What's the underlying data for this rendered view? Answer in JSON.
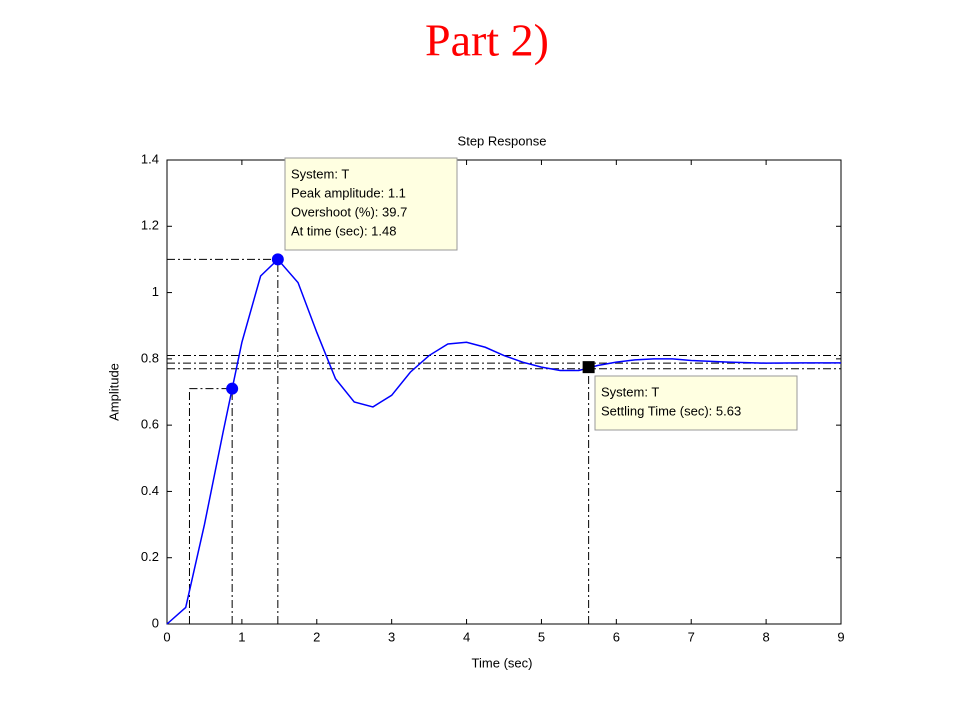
{
  "heading": "Part 2)",
  "chart_data": {
    "type": "line",
    "title": "Step Response",
    "x_label": "Time (sec)",
    "y_label": "Amplitude",
    "x": [
      0,
      0.25,
      0.5,
      0.75,
      1.0,
      1.25,
      1.48,
      1.75,
      2.0,
      2.25,
      2.5,
      2.75,
      3.0,
      3.25,
      3.5,
      3.75,
      4.0,
      4.25,
      4.5,
      4.75,
      5.0,
      5.25,
      5.5,
      5.75,
      6.0,
      6.25,
      6.5,
      6.75,
      7.0,
      7.5,
      8.0,
      8.5,
      9.0
    ],
    "series": [
      {
        "name": "T",
        "color": "#0000ff",
        "values": [
          0,
          0.05,
          0.3,
          0.58,
          0.85,
          1.05,
          1.1,
          1.03,
          0.88,
          0.74,
          0.67,
          0.655,
          0.69,
          0.76,
          0.81,
          0.845,
          0.85,
          0.835,
          0.81,
          0.79,
          0.775,
          0.765,
          0.765,
          0.78,
          0.79,
          0.797,
          0.8,
          0.8,
          0.795,
          0.79,
          0.787,
          0.788,
          0.788
        ]
      }
    ],
    "xlim": [
      0,
      9
    ],
    "xticks": [
      0,
      1,
      2,
      3,
      4,
      5,
      6,
      7,
      8,
      9
    ],
    "ylim": [
      0,
      1.4
    ],
    "yticks": [
      0,
      0.2,
      0.4,
      0.6,
      0.8,
      1,
      1.2,
      1.4
    ],
    "ref_lines": [
      0.81,
      0.787,
      0.77
    ],
    "rise_start": 0.3,
    "markers": [
      {
        "x": 0.87,
        "y": 0.71,
        "shape": "circle"
      },
      {
        "x": 1.48,
        "y": 1.1,
        "shape": "circle"
      },
      {
        "x": 5.63,
        "y": 0.775,
        "shape": "square"
      }
    ],
    "annotations": [
      {
        "lines": [
          "System: T",
          "Peak amplitude: 1.1",
          "Overshoot (%): 39.7",
          "At time (sec): 1.48"
        ]
      },
      {
        "lines": [
          "System: T",
          "Settling Time (sec): 5.63"
        ]
      }
    ]
  }
}
